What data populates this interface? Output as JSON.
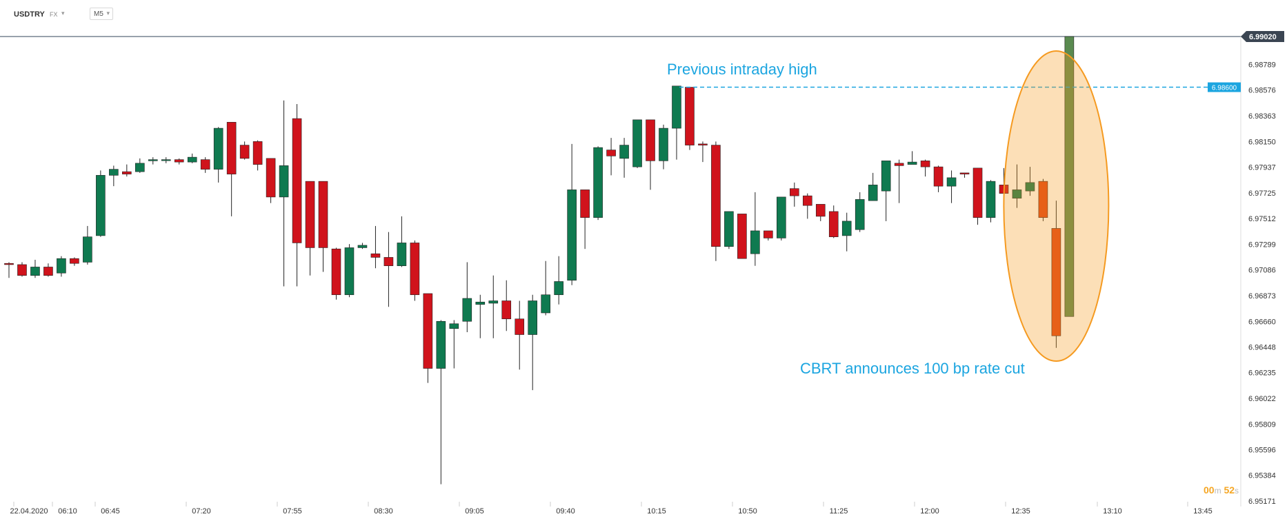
{
  "header": {
    "symbol": "USDTRY",
    "market": "FX",
    "timeframe": "M5"
  },
  "countdown": {
    "minutes": "00",
    "minutes_unit": "m",
    "seconds": "52",
    "seconds_unit": "s"
  },
  "colors": {
    "up": "#0f7a50",
    "down": "#d0131c",
    "highlight_up": "#5a8a50",
    "highlight_down": "#e04515",
    "annotation": "#1ba5e0",
    "ellipse": "#f59a20",
    "axis_text": "#333333"
  },
  "chart_data": {
    "type": "candlestick",
    "title": "",
    "x_tick_labels": [
      "22.04.2020",
      "06:10",
      "06:45",
      "07:20",
      "07:55",
      "08:30",
      "09:05",
      "09:40",
      "10:15",
      "10:50",
      "11:25",
      "12:00",
      "12:35",
      "13:10",
      "13:45"
    ],
    "y_tick_labels": [
      "6.98789",
      "6.98576",
      "6.98363",
      "6.98150",
      "6.97937",
      "6.97725",
      "6.97512",
      "6.97299",
      "6.97086",
      "6.96873",
      "6.96660",
      "6.96448",
      "6.96235",
      "6.96022",
      "6.95809",
      "6.95596",
      "6.95384",
      "6.95171"
    ],
    "ylim": [
      6.95171,
      6.9902
    ],
    "current_price_label": "6.99020",
    "candle_count": 82,
    "candles": [
      [
        6.9714,
        6.9715,
        6.9702,
        6.9713
      ],
      [
        6.9713,
        6.9715,
        6.9703,
        6.9704
      ],
      [
        6.9704,
        6.9717,
        6.9702,
        6.9711
      ],
      [
        6.9711,
        6.9714,
        6.9703,
        6.9704
      ],
      [
        6.9706,
        6.972,
        6.9703,
        6.9718
      ],
      [
        6.9718,
        6.9719,
        6.9712,
        6.9714
      ],
      [
        6.9715,
        6.9745,
        6.9713,
        6.9736
      ],
      [
        6.9737,
        6.9791,
        6.9736,
        6.9787
      ],
      [
        6.9787,
        6.9795,
        6.9778,
        6.9792
      ],
      [
        6.979,
        6.9796,
        6.9786,
        6.9788
      ],
      [
        6.979,
        6.9801,
        6.9789,
        6.9797
      ],
      [
        6.9799,
        6.9802,
        6.9796,
        6.98
      ],
      [
        6.98,
        6.9802,
        6.9797,
        6.98
      ],
      [
        6.98,
        6.9801,
        6.9796,
        6.9798
      ],
      [
        6.9798,
        6.9805,
        6.9797,
        6.9802
      ],
      [
        6.98,
        6.9802,
        6.9789,
        6.9792
      ],
      [
        6.9792,
        6.9827,
        6.9781,
        6.9826
      ],
      [
        6.9831,
        6.9831,
        6.9753,
        6.9788
      ],
      [
        6.9812,
        6.9815,
        6.98,
        6.9801
      ],
      [
        6.9815,
        6.9816,
        6.9791,
        6.9796
      ],
      [
        6.9801,
        6.9801,
        6.9764,
        6.9769
      ],
      [
        6.9769,
        6.9849,
        6.9695,
        6.9795
      ],
      [
        6.9834,
        6.9846,
        6.9695,
        6.9731
      ],
      [
        6.9782,
        6.9782,
        6.9704,
        6.9727
      ],
      [
        6.9782,
        6.9782,
        6.9707,
        6.9727
      ],
      [
        6.9726,
        6.9727,
        6.9684,
        6.9688
      ],
      [
        6.9688,
        6.973,
        6.9686,
        6.9727
      ],
      [
        6.9727,
        6.9731,
        6.9726,
        6.9729
      ],
      [
        6.9722,
        6.9745,
        6.971,
        6.9719
      ],
      [
        6.9719,
        6.974,
        6.9678,
        6.9712
      ],
      [
        6.9712,
        6.9753,
        6.9711,
        6.9731
      ],
      [
        6.9731,
        6.9733,
        6.9683,
        6.9688
      ],
      [
        6.9689,
        6.9689,
        6.9615,
        6.9627
      ],
      [
        6.9627,
        6.9667,
        6.9531,
        6.9666
      ],
      [
        6.966,
        6.9667,
        6.9627,
        6.9664
      ],
      [
        6.9666,
        6.9715,
        6.9657,
        6.9685
      ],
      [
        6.968,
        6.9688,
        6.9652,
        6.9682
      ],
      [
        6.9681,
        6.9704,
        6.9652,
        6.9683
      ],
      [
        6.9683,
        6.97,
        6.9658,
        6.9668
      ],
      [
        6.9668,
        6.9683,
        6.9626,
        6.9655
      ],
      [
        6.9655,
        6.9688,
        6.9609,
        6.9683
      ],
      [
        6.9673,
        6.9716,
        6.9671,
        6.9688
      ],
      [
        6.9688,
        6.972,
        6.968,
        6.9699
      ],
      [
        6.97,
        6.9813,
        6.9696,
        6.9775
      ],
      [
        6.9775,
        6.9775,
        6.9726,
        6.9752
      ],
      [
        6.9752,
        6.9811,
        6.975,
        6.981
      ],
      [
        6.9808,
        6.9818,
        6.9787,
        6.9803
      ],
      [
        6.9801,
        6.9818,
        6.9785,
        6.9812
      ],
      [
        6.9794,
        6.9833,
        6.9793,
        6.9833
      ],
      [
        6.9833,
        6.9833,
        6.9775,
        6.9799
      ],
      [
        6.9799,
        6.9829,
        6.9792,
        6.9826
      ],
      [
        6.9826,
        6.9861,
        6.98,
        6.9861
      ],
      [
        6.986,
        6.986,
        6.9808,
        6.9812
      ],
      [
        6.9813,
        6.9815,
        6.9798,
        6.9812
      ],
      [
        6.9812,
        6.9815,
        6.9716,
        6.9728
      ],
      [
        6.9728,
        6.9757,
        6.9726,
        6.9757
      ],
      [
        6.9755,
        6.9755,
        6.9718,
        6.9718
      ],
      [
        6.9722,
        6.9773,
        6.9712,
        6.9741
      ],
      [
        6.9741,
        6.9741,
        6.9733,
        6.9735
      ],
      [
        6.9735,
        6.9769,
        6.9733,
        6.9769
      ],
      [
        6.9776,
        6.9781,
        6.9761,
        6.977
      ],
      [
        6.977,
        6.9772,
        6.9751,
        6.9762
      ],
      [
        6.9763,
        6.9763,
        6.9749,
        6.9753
      ],
      [
        6.9757,
        6.9762,
        6.9735,
        6.9736
      ],
      [
        6.9737,
        6.9756,
        6.9724,
        6.9749
      ],
      [
        6.9742,
        6.9773,
        6.974,
        6.9767
      ],
      [
        6.9766,
        6.9789,
        6.9766,
        6.9779
      ],
      [
        6.9774,
        6.9797,
        6.9749,
        6.9799
      ],
      [
        6.9797,
        6.98,
        6.9764,
        6.9795
      ],
      [
        6.9796,
        6.9807,
        6.9797,
        6.9798
      ],
      [
        6.9799,
        6.98,
        6.9786,
        6.9794
      ],
      [
        6.9794,
        6.9795,
        6.9773,
        6.9778
      ],
      [
        6.9778,
        6.9791,
        6.9764,
        6.9785
      ],
      [
        6.9789,
        6.9789,
        6.9785,
        6.9788
      ],
      [
        6.9793,
        6.9793,
        6.9746,
        6.9752
      ],
      [
        6.9752,
        6.9783,
        6.9748,
        6.9782
      ],
      [
        6.9779,
        6.9793,
        6.9769,
        6.9772
      ],
      [
        6.9768,
        6.9796,
        6.976,
        6.9775
      ],
      [
        6.9774,
        6.9794,
        6.977,
        6.9781
      ],
      [
        6.9782,
        6.9784,
        6.9749,
        6.9752
      ],
      [
        6.9743,
        6.9766,
        6.9644,
        6.9654
      ],
      [
        6.967,
        6.9902,
        6.967,
        6.9902
      ]
    ],
    "reference_line": {
      "price": 6.986,
      "label": "6.98600"
    },
    "annotations": [
      {
        "text": "Previous intraday high"
      },
      {
        "text": "CBRT announces 100 bp rate cut"
      }
    ],
    "highlight": {
      "shape": "ellipse",
      "color": "#f59a20",
      "candles": [
        79,
        81
      ]
    }
  }
}
